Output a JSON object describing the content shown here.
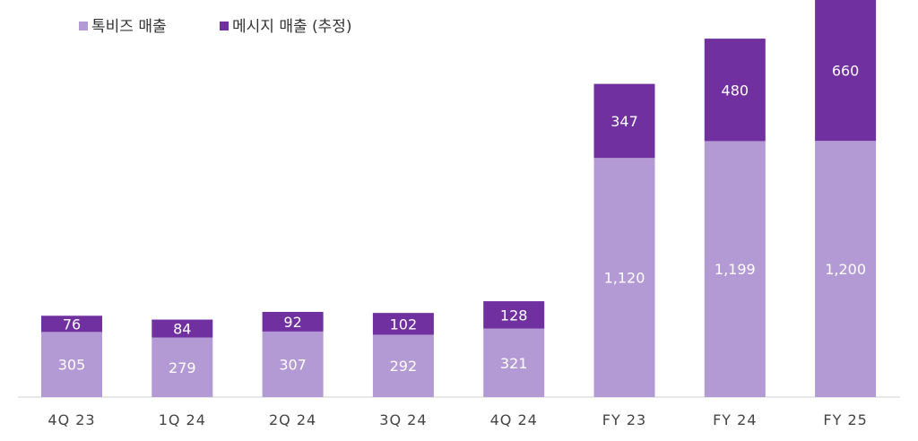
{
  "chart_data": {
    "type": "bar",
    "stacked": true,
    "categories": [
      "4Q 23",
      "1Q 24",
      "2Q 24",
      "3Q 24",
      "4Q 24",
      "FY 23",
      "FY 24",
      "FY 25"
    ],
    "series": [
      {
        "name": "톡비즈 매출",
        "color": "#b39ad4",
        "values": [
          305,
          279,
          307,
          292,
          321,
          1120,
          1199,
          1200
        ],
        "labels": [
          "305",
          "279",
          "307",
          "292",
          "321",
          "1,120",
          "1,199",
          "1,200"
        ]
      },
      {
        "name": "메시지 매출 (추정)",
        "color": "#7030a0",
        "values": [
          76,
          84,
          92,
          102,
          128,
          347,
          480,
          660
        ],
        "labels": [
          "76",
          "84",
          "92",
          "102",
          "128",
          "347",
          "480",
          "660"
        ]
      }
    ],
    "ylim": [
      0,
      1860
    ],
    "legend": "top-left",
    "grid": false
  }
}
